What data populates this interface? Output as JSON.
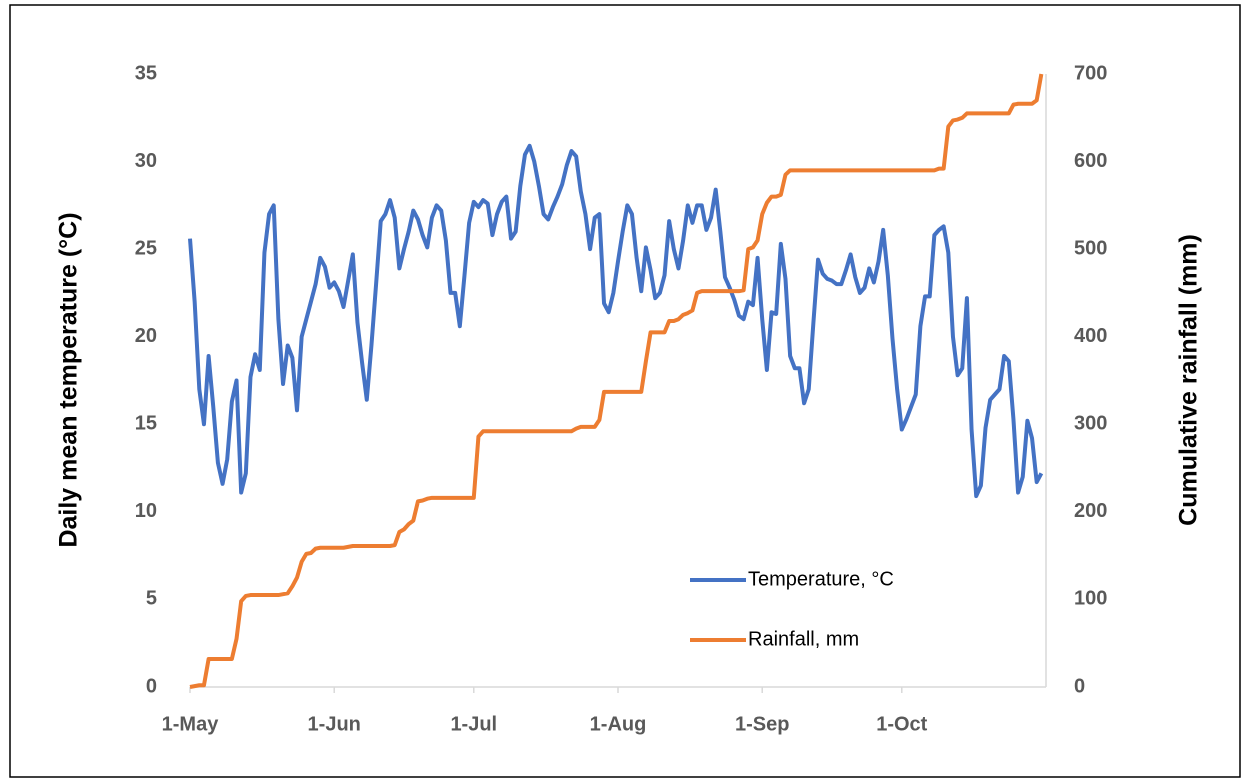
{
  "chart_data": {
    "type": "line",
    "x": [
      0,
      1,
      2,
      3,
      4,
      5,
      6,
      7,
      8,
      9,
      10,
      11,
      12,
      13,
      14,
      15,
      16,
      17,
      18,
      19,
      20,
      21,
      22,
      23,
      24,
      25,
      26,
      27,
      28,
      29,
      30,
      31,
      32,
      33,
      34,
      35,
      36,
      37,
      38,
      39,
      40,
      41,
      42,
      43,
      44,
      45,
      46,
      47,
      48,
      49,
      50,
      51,
      52,
      53,
      54,
      55,
      56,
      57,
      58,
      59,
      60,
      61,
      62,
      63,
      64,
      65,
      66,
      67,
      68,
      69,
      70,
      71,
      72,
      73,
      74,
      75,
      76,
      77,
      78,
      79,
      80,
      81,
      82,
      83,
      84,
      85,
      86,
      87,
      88,
      89,
      90,
      91,
      92,
      93,
      94,
      95,
      96,
      97,
      98,
      99,
      100,
      101,
      102,
      103,
      104,
      105,
      106,
      107,
      108,
      109,
      110,
      111,
      112,
      113,
      114,
      115,
      116,
      117,
      118,
      119,
      120,
      121,
      122,
      123,
      124,
      125,
      126,
      127,
      128,
      129,
      130,
      131,
      132,
      133,
      134,
      135,
      136,
      137,
      138,
      139,
      140,
      141,
      142,
      143,
      144,
      145,
      146,
      147,
      148,
      149,
      150,
      151,
      152,
      153,
      154,
      155,
      156,
      157,
      158,
      159,
      160,
      161,
      162,
      163,
      164,
      165,
      166,
      167,
      168,
      169,
      170,
      171,
      172,
      173,
      174,
      175,
      176,
      177,
      178,
      179,
      180,
      181,
      182,
      183
    ],
    "xlim": [
      0,
      184
    ],
    "xticks": [
      {
        "value": 0,
        "label": "1-May"
      },
      {
        "value": 31,
        "label": "1-Jun"
      },
      {
        "value": 61,
        "label": "1-Jul"
      },
      {
        "value": 92,
        "label": "1-Aug"
      },
      {
        "value": 123,
        "label": "1-Sep"
      },
      {
        "value": 153,
        "label": "1-Oct"
      }
    ],
    "ylim": [
      0,
      35
    ],
    "yticks": [
      0,
      5,
      10,
      15,
      20,
      25,
      30,
      35
    ],
    "y2lim": [
      0,
      700
    ],
    "y2ticks": [
      0,
      100,
      200,
      300,
      400,
      500,
      600,
      700
    ],
    "y_label": "Daily mean temperature (°C)",
    "y2_label": "Cumulative rainfall (mm)",
    "grid": false,
    "legend": "lower right",
    "series": [
      {
        "name": "Temperature, °C",
        "color": "#4472c4",
        "axis": "y",
        "values": [
          25.6,
          22,
          17,
          15,
          18.9,
          16,
          12.8,
          11.6,
          13,
          16.3,
          17.5,
          11.1,
          12.2,
          17.7,
          19,
          18.1,
          24.8,
          27,
          27.5,
          21,
          17.3,
          19.5,
          18.8,
          15.8,
          20,
          21,
          22,
          23,
          24.5,
          24,
          22.8,
          23.1,
          22.6,
          21.7,
          23.2,
          24.7,
          20.8,
          18.5,
          16.4,
          19.5,
          23,
          26.6,
          27,
          27.8,
          26.8,
          23.9,
          25,
          26,
          27.2,
          26.7,
          25.8,
          25.1,
          26.8,
          27.5,
          27.2,
          25.5,
          22.5,
          22.5,
          20.6,
          23.5,
          26.5,
          27.7,
          27.4,
          27.8,
          27.6,
          25.8,
          27,
          27.7,
          28,
          25.6,
          26,
          28.6,
          30.4,
          30.9,
          30,
          28.6,
          27,
          26.7,
          27.4,
          28,
          28.7,
          29.8,
          30.6,
          30.3,
          28.3,
          27,
          25,
          26.8,
          27,
          21.9,
          21.4,
          22.5,
          24.3,
          26,
          27.5,
          27,
          24.5,
          22.6,
          25.1,
          23.8,
          22.2,
          22.5,
          23.5,
          26.6,
          25,
          23.9,
          25.5,
          27.5,
          26.5,
          27.5,
          27.5,
          26.1,
          26.8,
          28.4,
          26,
          23.4,
          22.8,
          22.1,
          21.2,
          21,
          22,
          21.8,
          24.5,
          21,
          18.1,
          21.4,
          21.3,
          25.3,
          23.3,
          18.9,
          18.2,
          18.2,
          16.2,
          17,
          20.8,
          24.4,
          23.6,
          23.3,
          23.2,
          23,
          23,
          23.8,
          24.7,
          23.4,
          22.5,
          22.8,
          23.9,
          23.1,
          24.3,
          26.1,
          23.5,
          19.9,
          17,
          14.7,
          15.3,
          16,
          16.7,
          20.6,
          22.3,
          22.3,
          25.8,
          26.1,
          26.3,
          24.8,
          20,
          17.8,
          18.2,
          22.2,
          14.7,
          10.9,
          11.5,
          14.8,
          16.4,
          16.7,
          17,
          18.9,
          18.6,
          15.3,
          11.1,
          12,
          15.2,
          14.2,
          11.7,
          12.2
        ]
      },
      {
        "name": "Rainfall, mm",
        "color": "#ed7d31",
        "axis": "y2",
        "values": [
          0,
          1,
          2,
          2,
          32,
          32,
          32,
          32,
          32,
          32,
          55,
          98,
          104,
          105,
          105,
          105,
          105,
          105,
          105,
          105,
          106,
          107,
          115,
          125,
          143,
          152,
          153,
          158,
          159,
          159,
          159,
          159,
          159,
          159,
          160,
          161,
          161,
          161,
          161,
          161,
          161,
          161,
          161,
          161,
          162,
          177,
          180,
          186,
          190,
          212,
          213,
          215,
          216,
          216,
          216,
          216,
          216,
          216,
          216,
          216,
          216,
          216,
          286,
          292,
          292,
          292,
          292,
          292,
          292,
          292,
          292,
          292,
          292,
          292,
          292,
          292,
          292,
          292,
          292,
          292,
          292,
          292,
          292,
          295,
          297,
          297,
          297,
          297,
          305,
          337,
          337,
          337,
          337,
          337,
          337,
          337,
          337,
          337,
          372,
          405,
          405,
          405,
          405,
          418,
          418,
          420,
          425,
          427,
          430,
          450,
          452,
          452,
          452,
          452,
          452,
          452,
          452,
          452,
          452,
          453,
          500,
          502,
          510,
          540,
          553,
          560,
          560,
          562,
          585,
          590,
          590,
          590,
          590,
          590,
          590,
          590,
          590,
          590,
          590,
          590,
          590,
          590,
          590,
          590,
          590,
          590,
          590,
          590,
          590,
          590,
          590,
          590,
          590,
          590,
          590,
          590,
          590,
          590,
          590,
          590,
          590,
          592,
          592,
          640,
          647,
          648,
          650,
          655,
          655,
          655,
          655,
          655,
          655,
          655,
          655,
          655,
          655,
          665,
          666,
          666,
          666,
          666,
          670,
          700
        ]
      }
    ]
  }
}
